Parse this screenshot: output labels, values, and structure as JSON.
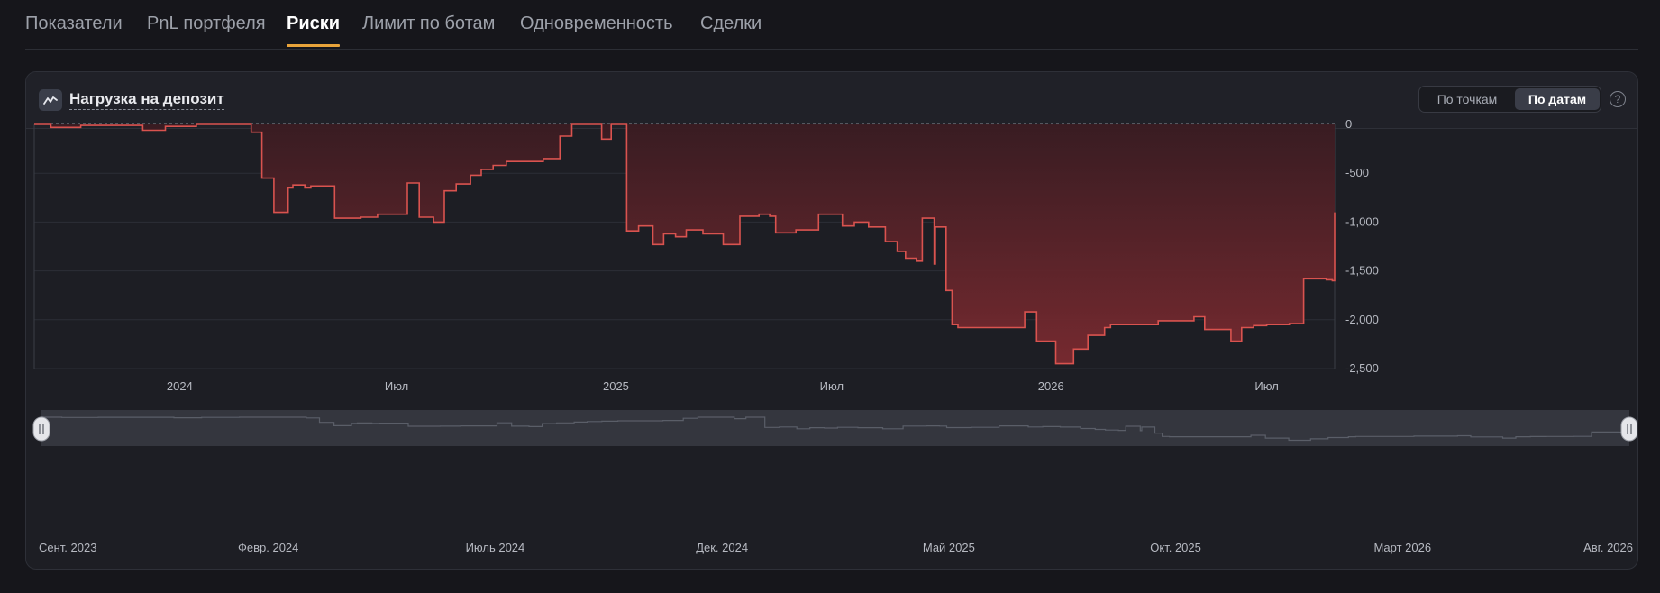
{
  "tabs": [
    {
      "label": "Показатели",
      "active": false
    },
    {
      "label": "PnL портфеля",
      "active": false
    },
    {
      "label": "Риски",
      "active": true
    },
    {
      "label": "Лимит по ботам",
      "active": false
    },
    {
      "label": "Одновременность",
      "active": false
    },
    {
      "label": "Сделки",
      "active": false
    }
  ],
  "card": {
    "icon": "trend-line-icon",
    "title": "Нагрузка на депозит",
    "toggle": {
      "points_label": "По точкам",
      "dates_label": "По датам",
      "selected": "dates"
    },
    "help_icon": "question-circle-icon",
    "help_label": "?"
  },
  "colors": {
    "accent": "#e8a33a",
    "series_line": "#d9534f",
    "area_top": "#3a1c22",
    "area_bottom": "#7a2a30",
    "navigator_line": "#5a5e68"
  },
  "chart_data": {
    "type": "area",
    "title": "Нагрузка на депозит",
    "xlabel": "",
    "ylabel": "",
    "x_range": [
      "2023-09-01",
      "2026-08-27"
    ],
    "ylim": [
      -2500,
      0
    ],
    "y_ticks": [
      0,
      -500,
      -1000,
      -1500,
      -2000,
      -2500
    ],
    "y_tick_labels": [
      "0",
      "-500",
      "-1,000",
      "-1,500",
      "-2,000",
      "-2,500"
    ],
    "x_ticks": [
      {
        "date": "2024-01-01",
        "label": "2024"
      },
      {
        "date": "2024-07-01",
        "label": "Июл"
      },
      {
        "date": "2025-01-01",
        "label": "2025"
      },
      {
        "date": "2025-07-01",
        "label": "Июл"
      },
      {
        "date": "2026-01-01",
        "label": "2026"
      },
      {
        "date": "2026-07-01",
        "label": "Июл"
      }
    ],
    "zero_line": "dashed",
    "grid": true,
    "legend": "none",
    "series": [
      {
        "x": [
          "2023-09-01",
          "2023-09-15",
          "2023-10-10",
          "2023-11-20",
          "2023-12-01",
          "2023-12-20",
          "2024-01-15",
          "2024-02-01",
          "2024-02-15",
          "2024-03-01",
          "2024-03-10",
          "2024-03-20",
          "2024-04-01",
          "2024-04-05",
          "2024-04-15",
          "2024-04-20",
          "2024-05-10",
          "2024-06-01",
          "2024-06-15",
          "2024-07-10",
          "2024-07-20",
          "2024-08-01",
          "2024-08-10",
          "2024-08-20",
          "2024-09-01",
          "2024-09-10",
          "2024-09-20",
          "2024-10-01",
          "2024-10-15",
          "2024-11-01",
          "2024-11-15",
          "2024-11-25",
          "2024-12-01",
          "2024-12-10",
          "2024-12-20",
          "2024-12-28",
          "2025-01-05",
          "2025-01-10",
          "2025-01-20",
          "2025-02-01",
          "2025-02-10",
          "2025-02-20",
          "2025-03-01",
          "2025-03-15",
          "2025-04-01",
          "2025-04-15",
          "2025-05-01",
          "2025-05-10",
          "2025-05-15",
          "2025-06-01",
          "2025-06-20",
          "2025-07-01",
          "2025-07-10",
          "2025-07-20",
          "2025-08-01",
          "2025-08-15",
          "2025-08-25",
          "2025-09-01",
          "2025-09-10",
          "2025-09-15",
          "2025-09-25",
          "2025-09-26",
          "2025-10-01",
          "2025-10-05",
          "2025-10-10",
          "2025-10-15",
          "2025-11-01",
          "2025-12-01",
          "2025-12-10",
          "2025-12-20",
          "2026-01-05",
          "2026-01-15",
          "2026-01-20",
          "2026-02-01",
          "2026-02-15",
          "2026-02-20",
          "2026-03-01",
          "2026-03-10",
          "2026-04-01",
          "2026-05-01",
          "2026-05-10",
          "2026-06-01",
          "2026-06-10",
          "2026-06-20",
          "2026-07-01",
          "2026-07-20",
          "2026-08-01",
          "2026-08-10",
          "2026-08-20",
          "2026-08-25",
          "2026-08-27"
        ],
        "y": [
          0,
          -30,
          -10,
          -10,
          -60,
          -20,
          0,
          0,
          0,
          -80,
          -550,
          -900,
          -650,
          -620,
          -650,
          -630,
          -960,
          -950,
          -920,
          -600,
          -950,
          -1000,
          -680,
          -610,
          -520,
          -460,
          -420,
          -380,
          -380,
          -350,
          -120,
          0,
          0,
          0,
          -150,
          0,
          0,
          -1090,
          -1040,
          -1230,
          -1120,
          -1150,
          -1080,
          -1120,
          -1230,
          -940,
          -920,
          -940,
          -1110,
          -1080,
          -920,
          -920,
          -1040,
          -1000,
          -1050,
          -1200,
          -1300,
          -1370,
          -1400,
          -960,
          -1430,
          -1050,
          -1050,
          -1700,
          -2050,
          -2080,
          -2080,
          -2080,
          -1920,
          -2220,
          -2450,
          -2450,
          -2300,
          -2160,
          -2080,
          -2050,
          -2050,
          -2050,
          -2010,
          -1970,
          -2100,
          -2220,
          -2080,
          -2060,
          -2050,
          -2040,
          -1580,
          -1580,
          -1590,
          -1600,
          -900
        ]
      }
    ]
  },
  "navigator": {
    "labels": [
      "Сент. 2023",
      "Февр. 2024",
      "Июль 2024",
      "Дек. 2024",
      "Май 2025",
      "Окт. 2025",
      "Март 2026",
      "Авг. 2026"
    ],
    "left_handle_icon": "drag-handle-icon",
    "right_handle_icon": "drag-handle-icon"
  }
}
